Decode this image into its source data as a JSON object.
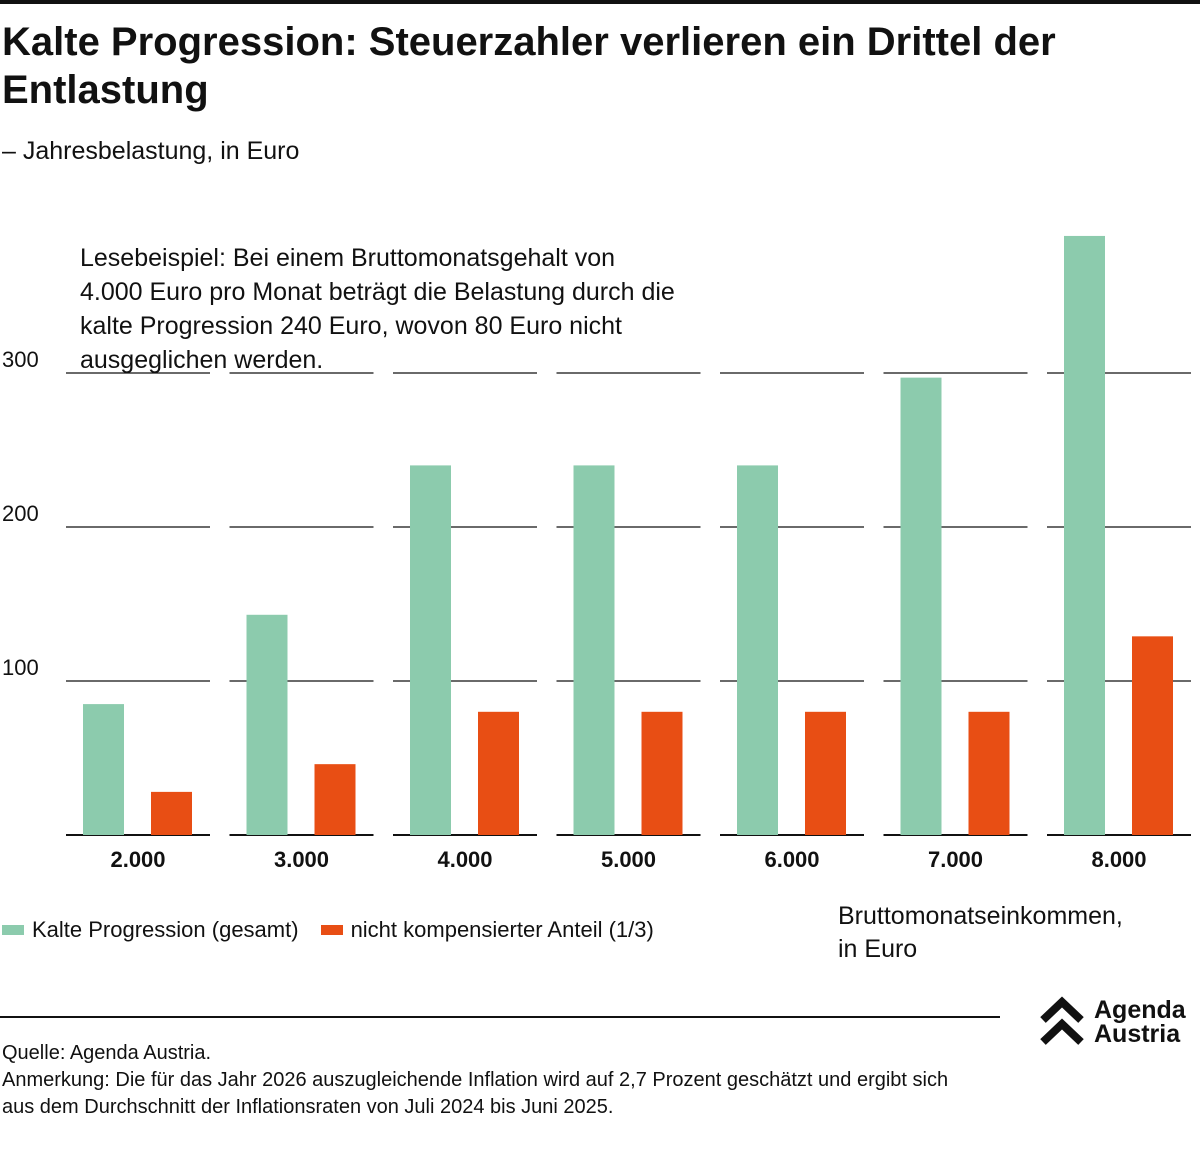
{
  "header": {
    "title": "Kalte Progression: Steuerzahler verlieren ein Drittel der Entlastung",
    "subtitle": "– Jahresbelastung, in Euro"
  },
  "annotation": "Lesebeispiel: Bei einem Bruttomonatsgehalt von 4.000 Euro pro Monat beträgt die Belastung durch die kalte Progression 240 Euro, wovon 80 Euro nicht ausgeglichen werden.",
  "chart_data": {
    "type": "bar",
    "title": "Kalte Progression: Steuerzahler verlieren ein Drittel der Entlastung",
    "subtitle": "– Jahresbelastung, in Euro",
    "xlabel": "Bruttomonatseinkommen, in Euro",
    "ylabel": "",
    "categories": [
      "2.000",
      "3.000",
      "4.000",
      "5.000",
      "6.000",
      "7.000",
      "8.000"
    ],
    "series": [
      {
        "name": "Kalte Progression (gesamt)",
        "color": "#8ccbad",
        "values": [
          85,
          143,
          240,
          240,
          240,
          297,
          389
        ]
      },
      {
        "name": "nicht kompensierter Anteil (1/3)",
        "color": "#e84e14",
        "values": [
          28,
          46,
          80,
          80,
          80,
          80,
          129
        ]
      }
    ],
    "ylim": [
      0,
      389
    ],
    "yticks": [
      100,
      200,
      300
    ],
    "ytick_labels": [
      "100",
      "200",
      "300"
    ],
    "grid": true,
    "legend": "bottom-left"
  },
  "legend": {
    "items": [
      {
        "label": "Kalte Progression (gesamt)",
        "color": "#8ccbad"
      },
      {
        "label": "nicht kompensierter Anteil (1/3)",
        "color": "#e84e14"
      }
    ]
  },
  "xaxis_title": {
    "line1": "Bruttomonatseinkommen,",
    "line2": "in Euro"
  },
  "footer": {
    "source": "Quelle: Agenda Austria.",
    "note": "Anmerkung: Die für das Jahr 2026 auszugleichende Inflation wird auf 2,7 Prozent geschätzt und ergibt sich aus dem Durchschnitt der Inflationsraten von Juli 2024 bis Juni 2025."
  },
  "logo": {
    "line1": "Agenda",
    "line2": "Austria",
    "icon": "double-chevron-up-icon"
  }
}
